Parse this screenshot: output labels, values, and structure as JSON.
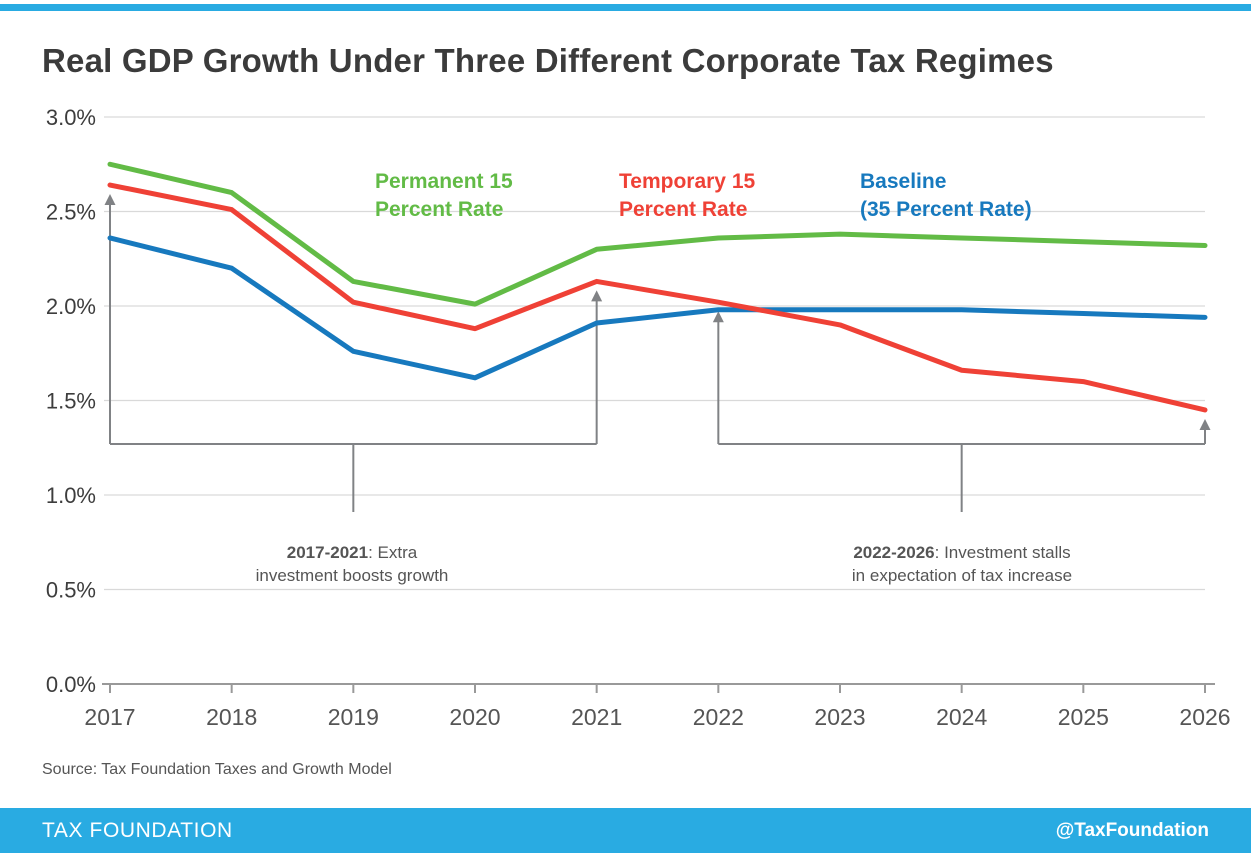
{
  "title": "Real GDP Growth Under Three Different Corporate Tax Regimes",
  "source": "Source: Tax Foundation Taxes and Growth Model",
  "footer": {
    "brand": "TAX FOUNDATION",
    "handle": "@TaxFoundation"
  },
  "colors": {
    "green": "#62BB46",
    "red": "#EF4136",
    "blue": "#1779BE",
    "footer_blue": "#29ABE2",
    "annotation_gray": "#808285",
    "gridline_gray": "#d9d9d9",
    "axis_gray": "#999999"
  },
  "legend": [
    {
      "label": "Permanent 15\nPercent Rate",
      "color": "#62BB46"
    },
    {
      "label": "Temporary 15\nPercent Rate",
      "color": "#EF4136"
    },
    {
      "label": "Baseline\n(35 Percent Rate)",
      "color": "#1779BE"
    }
  ],
  "chart_data": {
    "type": "line",
    "x": [
      2017,
      2018,
      2019,
      2020,
      2021,
      2022,
      2023,
      2024,
      2025,
      2026
    ],
    "ylim": [
      0,
      3.0
    ],
    "ytick_step": 0.5,
    "ytick_format": "percent_one_decimal",
    "grid": true,
    "legend_position": "top-inside",
    "series": [
      {
        "name": "Permanent 15 Percent Rate",
        "color": "#62BB46",
        "values": [
          2.75,
          2.6,
          2.13,
          2.01,
          2.3,
          2.36,
          2.38,
          2.36,
          2.34,
          2.32
        ]
      },
      {
        "name": "Temporary 15 Percent Rate",
        "color": "#EF4136",
        "values": [
          2.64,
          2.51,
          2.02,
          1.88,
          2.13,
          2.02,
          1.9,
          1.66,
          1.6,
          1.45
        ]
      },
      {
        "name": "Baseline (35 Percent Rate)",
        "color": "#1779BE",
        "values": [
          2.36,
          2.2,
          1.76,
          1.62,
          1.91,
          1.98,
          1.98,
          1.98,
          1.96,
          1.94
        ]
      }
    ],
    "annotations": [
      {
        "label_bold": "2017-2021",
        "label_rest": ": Extra\ninvestment boosts growth",
        "from_year": 2017,
        "to_year": 2021,
        "stem_year": 2019,
        "bracket_value": 1.27,
        "points_to_series": "Temporary 15 Percent Rate"
      },
      {
        "label_bold": "2022-2026",
        "label_rest": ": Investment stalls\nin expectation of tax increase",
        "from_year": 2022,
        "to_year": 2026,
        "stem_year": 2024,
        "bracket_value": 1.27,
        "points_to_series": "Temporary 15 Percent Rate"
      }
    ]
  }
}
